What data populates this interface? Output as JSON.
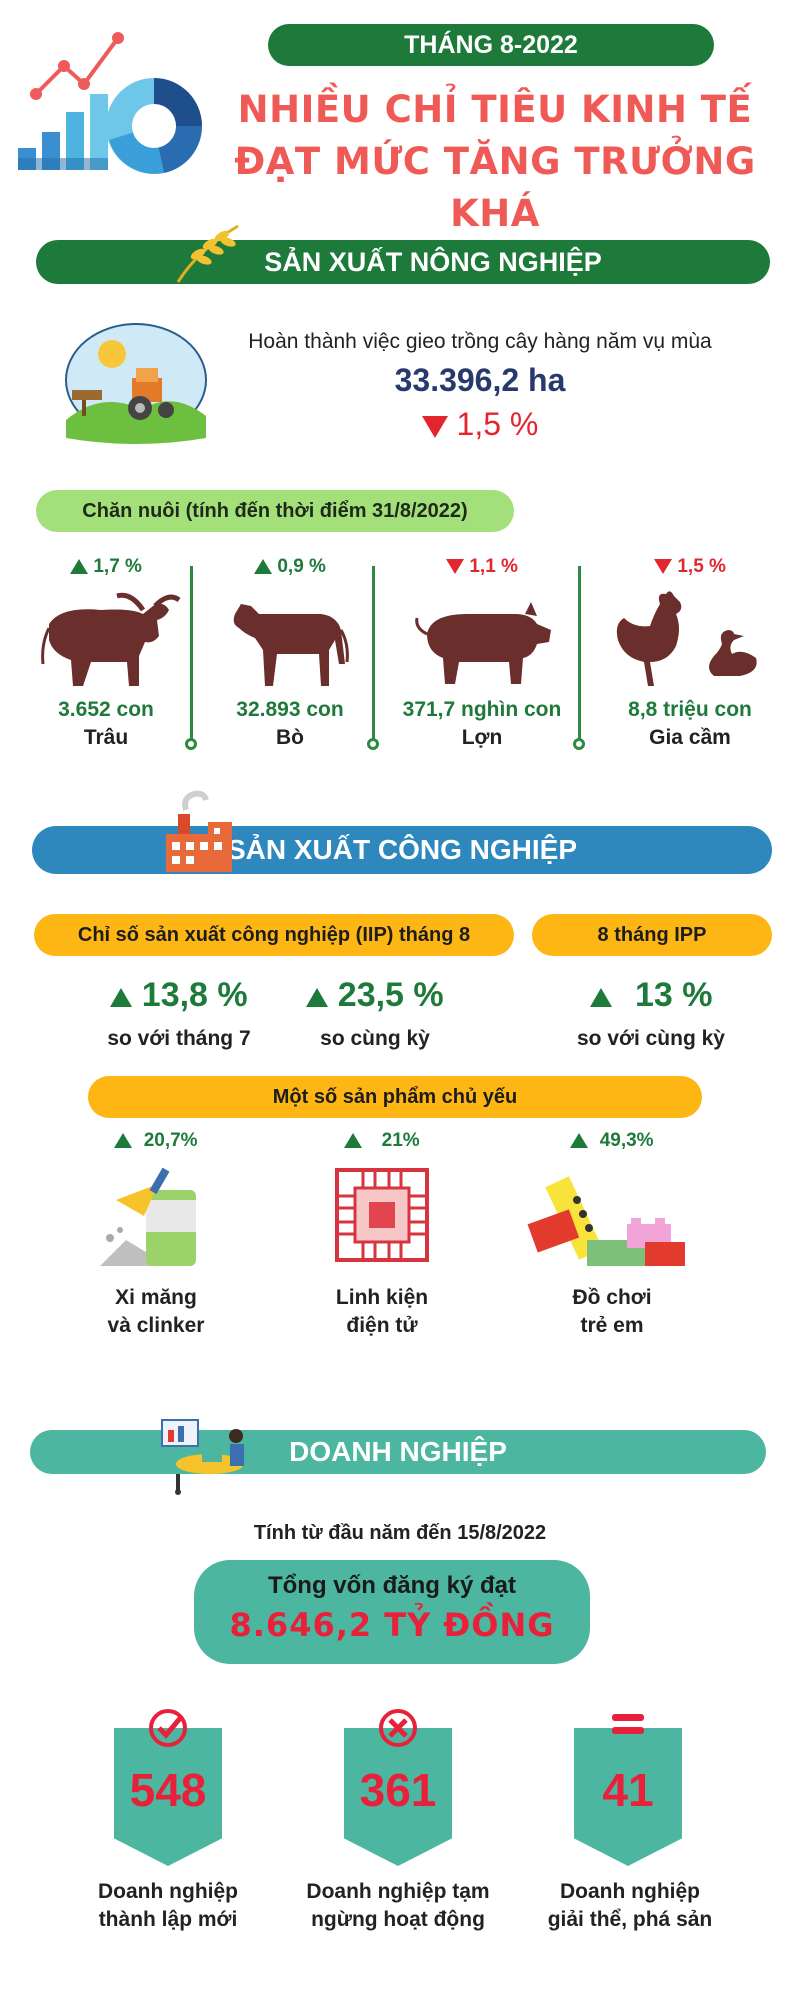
{
  "header": {
    "date_badge": "THÁNG 8-2022",
    "title_line1": "NHIỀU CHỈ TIÊU KINH TẾ",
    "title_line2": "ĐẠT MỨC TĂNG TRƯỞNG KHÁ"
  },
  "agriculture": {
    "section_title": "SẢN XUẤT NÔNG NGHIỆP",
    "planting_label": "Hoàn thành việc gieo trồng cây hàng năm vụ mùa",
    "planting_value": "33.396,2 ha",
    "planting_change": "1,5 %",
    "livestock_header": "Chăn nuôi (tính đến thời điểm 31/8/2022)",
    "livestock": [
      {
        "change": "1,7 %",
        "direction": "up",
        "count": "3.652 con",
        "name": "Trâu"
      },
      {
        "change": "0,9 %",
        "direction": "up",
        "count": "32.893 con",
        "name": "Bò"
      },
      {
        "change": "1,1 %",
        "direction": "down",
        "count": "371,7 nghìn con",
        "name": "Lợn"
      },
      {
        "change": "1,5 %",
        "direction": "down",
        "count": "8,8 triệu con",
        "name": "Gia cầm"
      }
    ]
  },
  "industry": {
    "section_title": "SẢN XUẤT CÔNG NGHIỆP",
    "iip_header": "Chỉ số sản xuất công nghiệp (IIP) tháng 8",
    "ipp_header": "8 tháng IPP",
    "iip": [
      {
        "value": "13,8 %",
        "label": "so với tháng 7"
      },
      {
        "value": "23,5 %",
        "label": "so cùng kỳ"
      }
    ],
    "ipp": {
      "value": "13 %",
      "label": "so với cùng kỳ"
    },
    "products_header": "Một số sản phẩm chủ yếu",
    "products": [
      {
        "change": "20,7%",
        "line1": "Xi măng",
        "line2": "và clinker"
      },
      {
        "change": "21%",
        "line1": "Linh kiện",
        "line2": "điện tử"
      },
      {
        "change": "49,3%",
        "line1": "Đồ chơi",
        "line2": "trẻ em"
      }
    ]
  },
  "business": {
    "section_title": "DOANH NGHIỆP",
    "period": "Tính từ đầu năm đến 15/8/2022",
    "capital_label": "Tổng vốn đăng ký đạt",
    "capital_value": "8.646,2 TỶ ĐỒNG",
    "stats": [
      {
        "value": "548",
        "line1": "Doanh nghiệp",
        "line2": "thành lập mới",
        "icon": "check-circle-icon"
      },
      {
        "value": "361",
        "line1": "Doanh nghiệp tạm",
        "line2": "ngừng hoạt động",
        "icon": "x-circle-icon"
      },
      {
        "value": "41",
        "line1": "Doanh nghiệp",
        "line2": "giải thể, phá sản",
        "icon": "equals-icon"
      }
    ]
  },
  "colors": {
    "green": "#1e7a3b",
    "red": "#e3262e",
    "title_red": "#f05a56",
    "blue": "#2e87bd",
    "teal": "#4cb6a0",
    "amber": "#fdb614",
    "lime": "#a4e07a"
  }
}
